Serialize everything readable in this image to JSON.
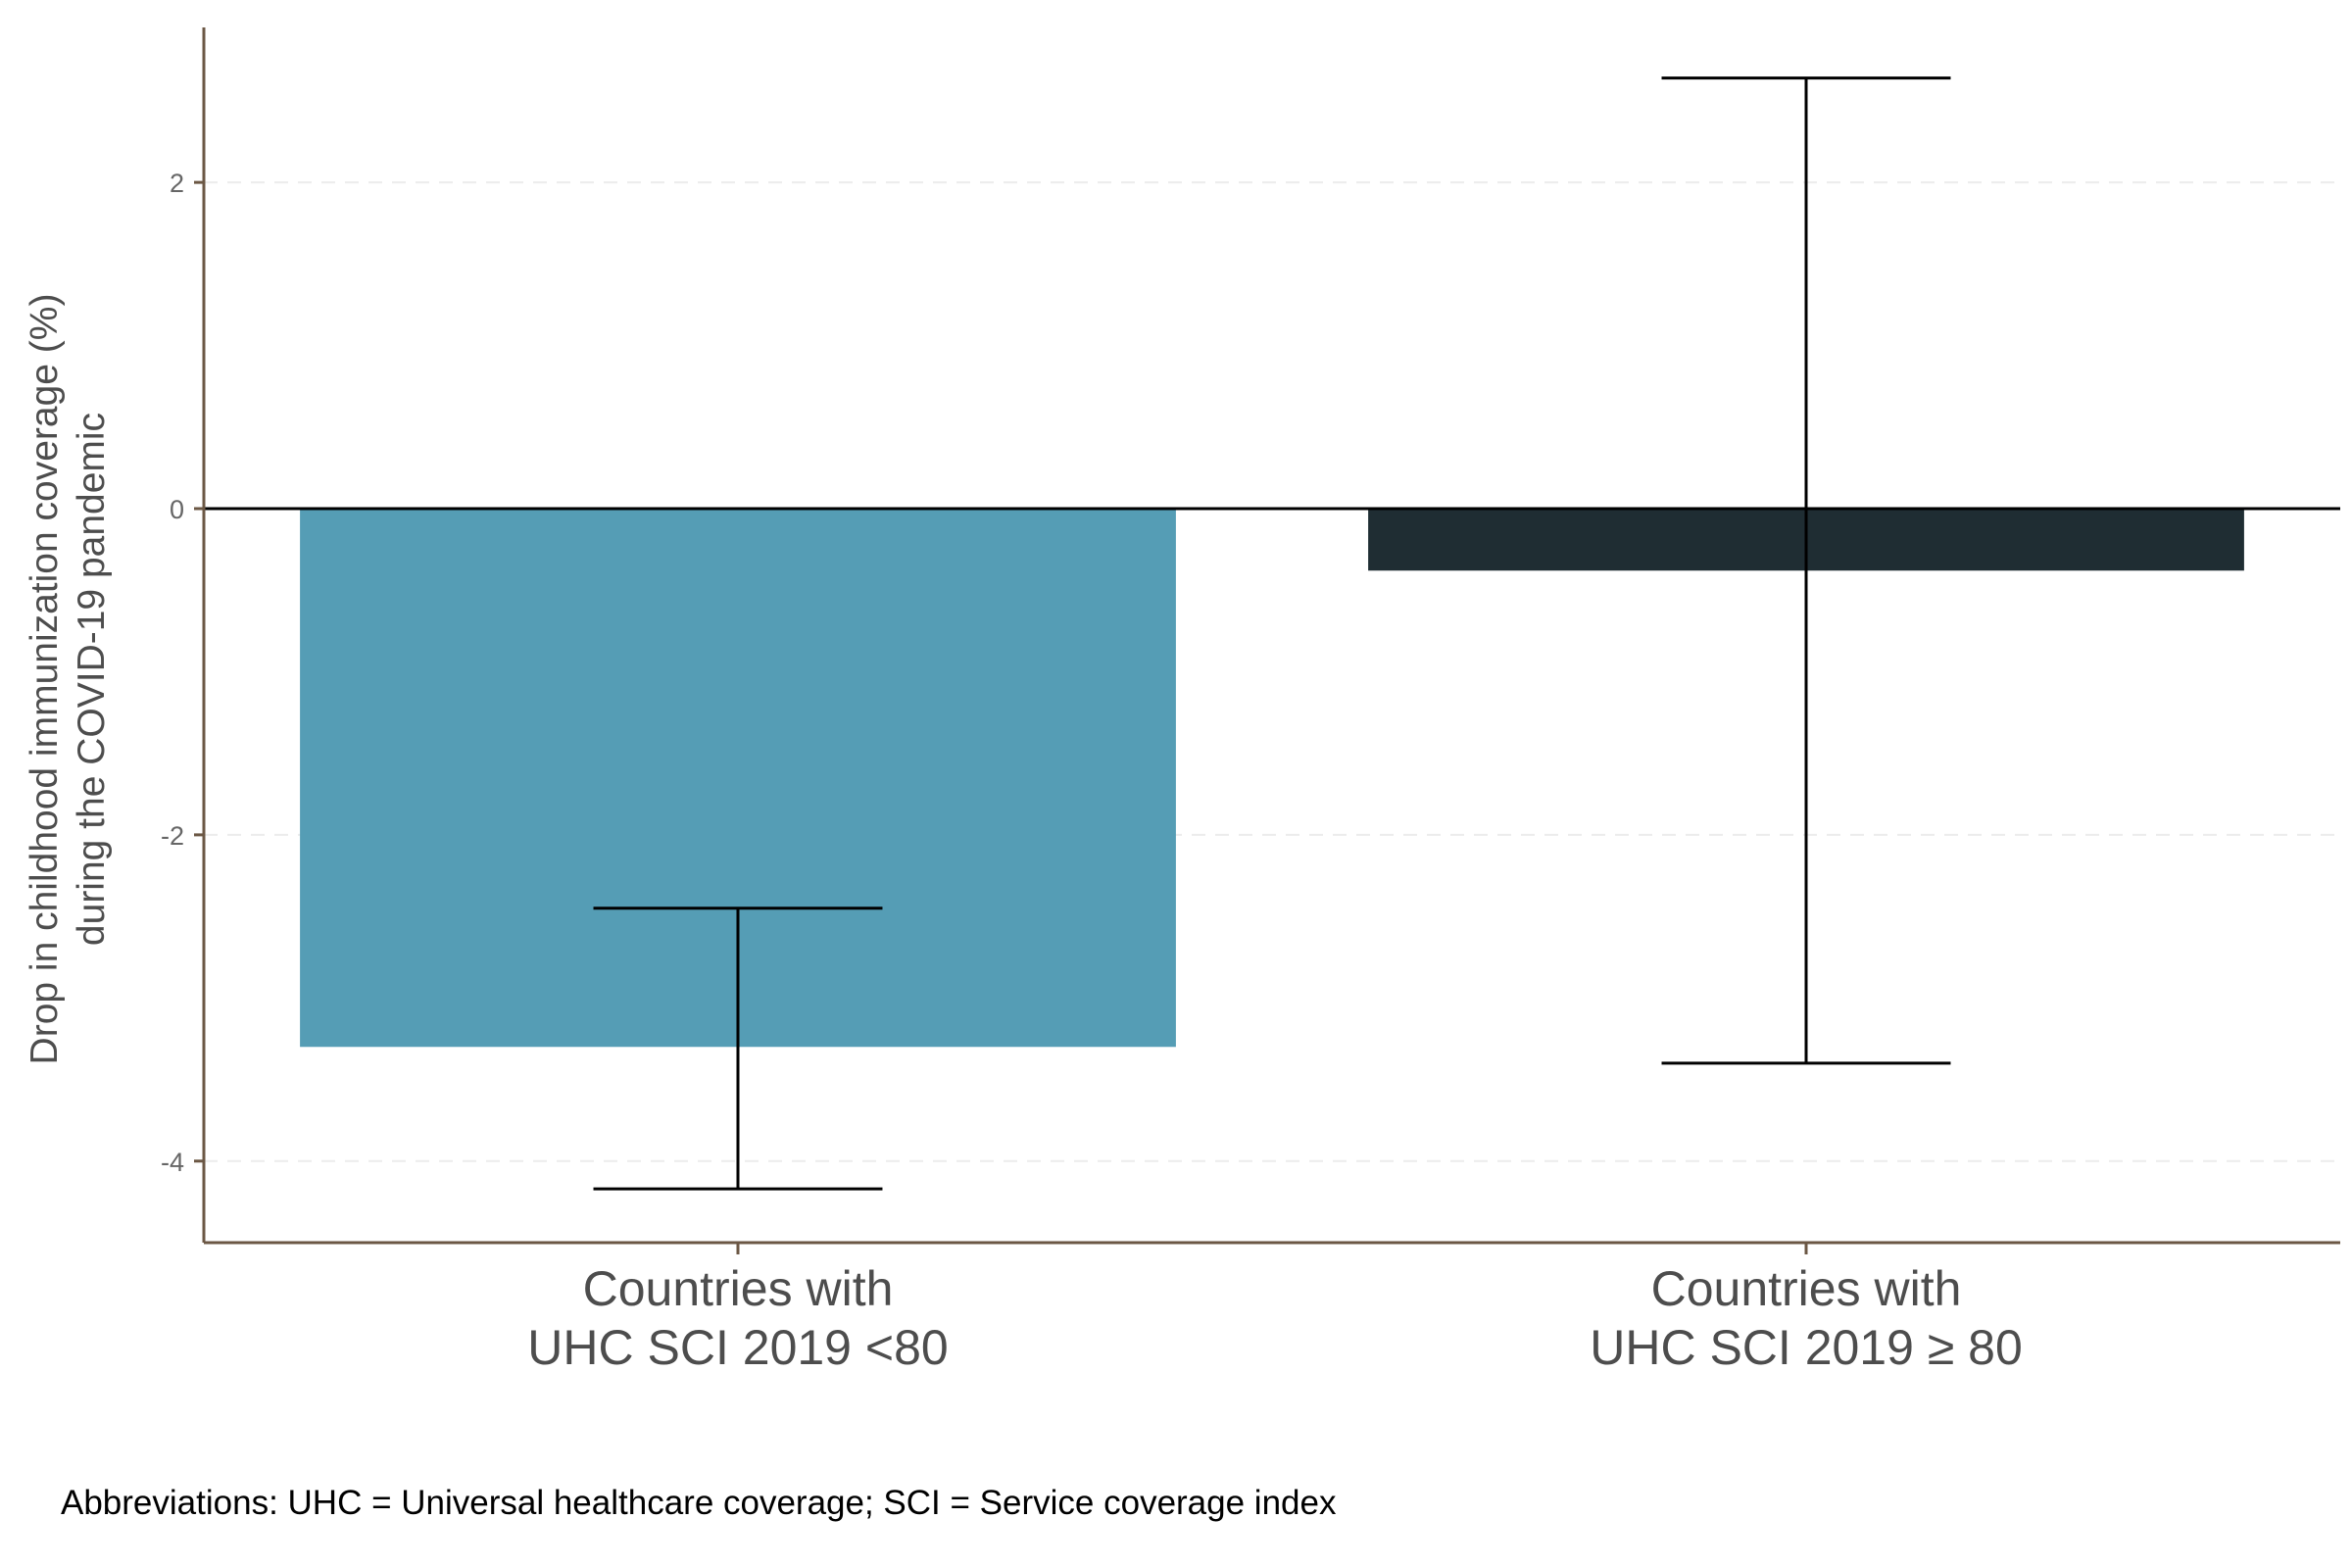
{
  "chart_data": {
    "type": "bar",
    "categories": [
      [
        "Countries with",
        "UHC SCI 2019 <80"
      ],
      [
        "Countries with",
        "UHC SCI 2019 ≥ 80"
      ]
    ],
    "values": [
      -3.3,
      -0.38
    ],
    "error_low": [
      -4.17,
      -3.4
    ],
    "error_high": [
      -2.45,
      2.64
    ],
    "bar_colors": [
      "#559db5",
      "#1f2d33"
    ],
    "ylabel": [
      "Drop in childhood immunization coverage (%)",
      "during the COVID-19 pandemic"
    ],
    "yticks": [
      {
        "value": 2,
        "label": "2"
      },
      {
        "value": 0,
        "label": "0"
      },
      {
        "value": -2,
        "label": "-2"
      },
      {
        "value": -4,
        "label": "-4"
      }
    ],
    "ylim": [
      -4.5,
      2.95
    ],
    "reference_line": 0,
    "grid": "dashed-faint"
  },
  "footnote": "Abbreviations: UHC = Universal healthcare coverage; SCI = Service coverage index",
  "colors": {
    "axis": "#6b5744",
    "tick_text": "#666666",
    "category_text": "#4d4d4d",
    "error_bar": "#000000"
  }
}
